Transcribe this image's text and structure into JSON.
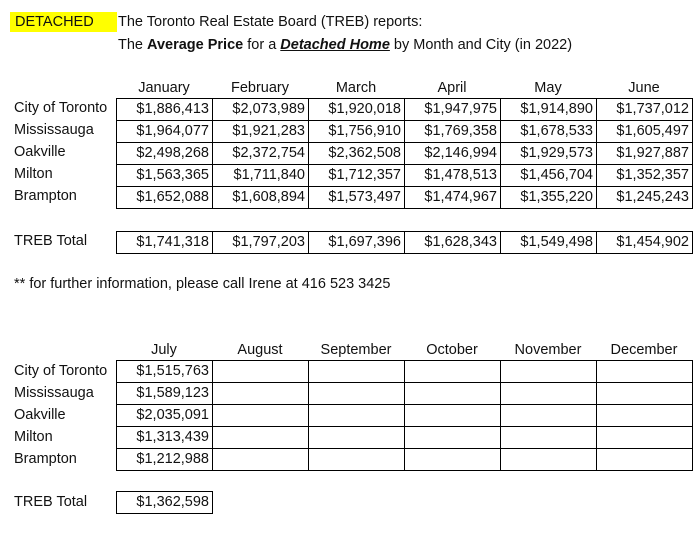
{
  "header": {
    "tag": "DETACHED",
    "line1": "The Toronto Real Estate Board (TREB) reports:",
    "line2_pre": "The ",
    "line2_bold": "Average Price",
    "line2_mid": " for a ",
    "line2_em": "Detached Home",
    "line2_post": " by Month and City (in 2022)"
  },
  "note": "** for further information, please call Irene at 416 523 3425",
  "cities": [
    "City of Toronto",
    "Mississauga",
    "Oakville",
    "Milton",
    "Brampton"
  ],
  "total_label": "TREB Total",
  "table1": {
    "months": [
      "January",
      "February",
      "March",
      "April",
      "May",
      "June"
    ],
    "rows": [
      [
        "$1,886,413",
        "$2,073,989",
        "$1,920,018",
        "$1,947,975",
        "$1,914,890",
        "$1,737,012"
      ],
      [
        "$1,964,077",
        "$1,921,283",
        "$1,756,910",
        "$1,769,358",
        "$1,678,533",
        "$1,605,497"
      ],
      [
        "$2,498,268",
        "$2,372,754",
        "$2,362,508",
        "$2,146,994",
        "$1,929,573",
        "$1,927,887"
      ],
      [
        "$1,563,365",
        "$1,711,840",
        "$1,712,357",
        "$1,478,513",
        "$1,456,704",
        "$1,352,357"
      ],
      [
        "$1,652,088",
        "$1,608,894",
        "$1,573,497",
        "$1,474,967",
        "$1,355,220",
        "$1,245,243"
      ]
    ],
    "total": [
      "$1,741,318",
      "$1,797,203",
      "$1,697,396",
      "$1,628,343",
      "$1,549,498",
      "$1,454,902"
    ]
  },
  "table2": {
    "months": [
      "July",
      "August",
      "September",
      "October",
      "November",
      "December"
    ],
    "rows": [
      [
        "$1,515,763",
        "",
        "",
        "",
        "",
        ""
      ],
      [
        "$1,589,123",
        "",
        "",
        "",
        "",
        ""
      ],
      [
        "$2,035,091",
        "",
        "",
        "",
        "",
        ""
      ],
      [
        "$1,313,439",
        "",
        "",
        "",
        "",
        ""
      ],
      [
        "$1,212,988",
        "",
        "",
        "",
        "",
        ""
      ]
    ],
    "total": [
      "$1,362,598"
    ]
  },
  "colors": {
    "tag_background": "#ffff00",
    "grid_border": "#000000"
  }
}
